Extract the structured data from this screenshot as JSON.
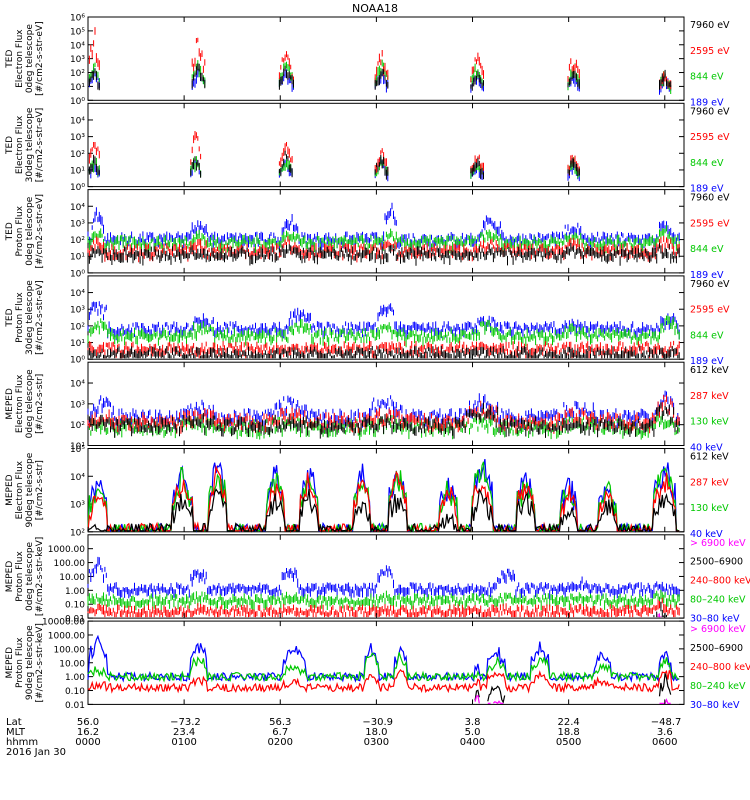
{
  "title": "NOAA18",
  "footer": {
    "row_labels": [
      "Lat",
      "MLT",
      "hhmm",
      "2016 Jan 30"
    ],
    "lat": [
      "56.0",
      "−73.2",
      "56.3",
      "−30.9",
      "3.8",
      "22.4",
      "−48.7"
    ],
    "mlt": [
      "16.2",
      "23.4",
      "6.7",
      "18.0",
      "5.0",
      "18.8",
      "3.6"
    ],
    "hhmm": [
      "0000",
      "0100",
      "0200",
      "0300",
      "0400",
      "0500",
      "0600"
    ]
  },
  "chart_data": [
    {
      "type": "scatter",
      "panel": "ted-electron-0deg",
      "ylabel": [
        "TED",
        "Electron Flux",
        "0deg telescope",
        "[#/cm2-s-str-eV]"
      ],
      "ylog": true,
      "ylim_exp": [
        0,
        6
      ],
      "ytick_labels": [
        "10⁰",
        "10¹",
        "10²",
        "10³",
        "10⁴",
        "10⁵",
        "10⁶"
      ],
      "channels": [
        {
          "label": "7960 eV",
          "color": "#000000"
        },
        {
          "label": "2595 eV",
          "color": "#ff0000"
        },
        {
          "label": "844 eV",
          "color": "#00c800"
        },
        {
          "label": "189 eV",
          "color": "#0000ff"
        }
      ],
      "bursts": [
        {
          "t": 0.065,
          "w": 0.05,
          "peak": [
            2.5,
            5.5,
            3.0,
            2.6
          ]
        },
        {
          "t": 1.15,
          "w": 0.06,
          "peak": [
            2.8,
            5.0,
            3.0,
            2.5
          ]
        },
        {
          "t": 2.06,
          "w": 0.07,
          "peak": [
            2.7,
            3.8,
            3.2,
            2.3
          ]
        },
        {
          "t": 3.05,
          "w": 0.06,
          "peak": [
            2.6,
            3.8,
            3.2,
            2.4
          ]
        },
        {
          "t": 4.05,
          "w": 0.06,
          "peak": [
            2.4,
            3.6,
            3.0,
            2.2
          ]
        },
        {
          "t": 5.05,
          "w": 0.06,
          "peak": [
            2.4,
            3.5,
            2.8,
            2.0
          ]
        },
        {
          "t": 6.0,
          "w": 0.06,
          "peak": [
            2.2,
            2.5,
            2.2,
            2.0
          ]
        }
      ]
    },
    {
      "type": "scatter",
      "panel": "ted-electron-30deg",
      "ylabel": [
        "TED",
        "Electron Flux",
        "30deg telescope",
        "[#/cm2-s-str-eV]"
      ],
      "ylog": true,
      "ylim_exp": [
        0,
        5
      ],
      "ytick_labels": [
        "10⁰",
        "10¹",
        "10²",
        "10³",
        "10⁴"
      ],
      "channels": [
        {
          "label": "7960 eV",
          "color": "#000000"
        },
        {
          "label": "2595 eV",
          "color": "#ff0000"
        },
        {
          "label": "844 eV",
          "color": "#00c800"
        },
        {
          "label": "189 eV",
          "color": "#0000ff"
        }
      ],
      "bursts": [
        {
          "t": 0.065,
          "w": 0.05,
          "peak": [
            2.0,
            3.7,
            2.0,
            1.8
          ]
        },
        {
          "t": 1.12,
          "w": 0.05,
          "peak": [
            2.0,
            3.5,
            2.0,
            1.8
          ]
        },
        {
          "t": 2.06,
          "w": 0.06,
          "peak": [
            2.2,
            3.0,
            2.0,
            1.8
          ]
        },
        {
          "t": 3.05,
          "w": 0.06,
          "peak": [
            2.0,
            2.6,
            2.0,
            1.8
          ]
        },
        {
          "t": 4.05,
          "w": 0.06,
          "peak": [
            1.8,
            2.3,
            1.8,
            1.6
          ]
        },
        {
          "t": 5.05,
          "w": 0.06,
          "peak": [
            1.8,
            2.2,
            1.8,
            1.6
          ]
        }
      ]
    },
    {
      "type": "scatter",
      "panel": "ted-proton-0deg",
      "ylabel": [
        "TED",
        "Proton Flux",
        "0deg telescope",
        "[#/cm2-s-str-eV]"
      ],
      "ylog": true,
      "ylim_exp": [
        0,
        5
      ],
      "ytick_labels": [
        "10⁰",
        "10¹",
        "10²",
        "10³",
        "10⁴"
      ],
      "channels": [
        {
          "label": "7960 eV",
          "color": "#000000"
        },
        {
          "label": "2595 eV",
          "color": "#ff0000"
        },
        {
          "label": "844 eV",
          "color": "#00c800"
        },
        {
          "label": "189 eV",
          "color": "#0000ff"
        }
      ],
      "baseline": [
        1.3,
        1.5,
        2.0,
        2.2
      ],
      "bursts": [
        {
          "t": 0.1,
          "w": 0.06,
          "peak": [
            1.5,
            2.0,
            2.5,
            4.0
          ]
        },
        {
          "t": 1.15,
          "w": 0.08,
          "peak": [
            1.5,
            1.9,
            2.4,
            3.2
          ]
        },
        {
          "t": 2.1,
          "w": 0.08,
          "peak": [
            1.5,
            2.0,
            2.5,
            3.3
          ]
        },
        {
          "t": 3.15,
          "w": 0.06,
          "peak": [
            1.5,
            2.0,
            2.5,
            4.1
          ]
        },
        {
          "t": 4.2,
          "w": 0.1,
          "peak": [
            1.5,
            1.9,
            2.5,
            3.4
          ]
        },
        {
          "t": 5.05,
          "w": 0.08,
          "peak": [
            1.6,
            1.9,
            2.5,
            3.0
          ]
        },
        {
          "t": 6.0,
          "w": 0.06,
          "peak": [
            1.6,
            2.2,
            2.8,
            3.3
          ]
        }
      ]
    },
    {
      "type": "scatter",
      "panel": "ted-proton-30deg",
      "ylabel": [
        "TED",
        "Proton Flux",
        "30deg telescope",
        "[#/cm2-s-str-eV]"
      ],
      "ylog": true,
      "ylim_exp": [
        0,
        5
      ],
      "ytick_labels": [
        "10⁰",
        "10¹",
        "10²",
        "10³",
        "10⁴"
      ],
      "channels": [
        {
          "label": "7960 eV",
          "color": "#000000"
        },
        {
          "label": "2595 eV",
          "color": "#ff0000"
        },
        {
          "label": "844 eV",
          "color": "#00c800"
        },
        {
          "label": "189 eV",
          "color": "#0000ff"
        }
      ],
      "baseline": [
        0.5,
        0.8,
        1.6,
        2.0
      ],
      "bursts": [
        {
          "t": 0.1,
          "w": 0.08,
          "peak": [
            0.5,
            0.8,
            2.3,
            3.8
          ]
        },
        {
          "t": 1.2,
          "w": 0.1,
          "peak": [
            0.5,
            0.8,
            2.2,
            2.6
          ]
        },
        {
          "t": 2.2,
          "w": 0.1,
          "peak": [
            0.5,
            0.8,
            2.3,
            3.1
          ]
        },
        {
          "t": 3.1,
          "w": 0.08,
          "peak": [
            0.5,
            0.8,
            2.3,
            3.6
          ]
        },
        {
          "t": 4.15,
          "w": 0.1,
          "peak": [
            0.5,
            0.8,
            2.2,
            2.5
          ]
        },
        {
          "t": 5.05,
          "w": 0.1,
          "peak": [
            0.5,
            0.8,
            2.0,
            2.2
          ]
        },
        {
          "t": 6.05,
          "w": 0.08,
          "peak": [
            0.5,
            0.8,
            2.5,
            2.7
          ]
        }
      ]
    },
    {
      "type": "scatter",
      "panel": "meped-electron-0deg",
      "ylabel": [
        "MEPED",
        "Electron Flux",
        "0deg telescope",
        "[#/cm2-s-str]"
      ],
      "ylog": true,
      "ylim_exp": [
        1,
        5
      ],
      "ytick_labels": [
        "10¹",
        "10²",
        "10³",
        "10⁴"
      ],
      "channels": [
        {
          "label": "612 keV",
          "color": "#000000"
        },
        {
          "label": "287 keV",
          "color": "#ff0000"
        },
        {
          "label": "130 keV",
          "color": "#00c800"
        },
        {
          "label": "40 keV",
          "color": "#0000ff"
        }
      ],
      "baseline": [
        2.1,
        2.3,
        2.0,
        2.5
      ],
      "bursts": [
        {
          "t": 0.15,
          "w": 0.1,
          "peak": [
            2.3,
            2.6,
            2.2,
            3.2
          ]
        },
        {
          "t": 1.15,
          "w": 0.15,
          "peak": [
            2.3,
            2.6,
            2.2,
            3.0
          ]
        },
        {
          "t": 2.1,
          "w": 0.15,
          "peak": [
            2.3,
            2.6,
            2.2,
            3.2
          ]
        },
        {
          "t": 3.1,
          "w": 0.15,
          "peak": [
            2.3,
            2.6,
            2.2,
            3.3
          ]
        },
        {
          "t": 4.1,
          "w": 0.15,
          "peak": [
            2.9,
            3.0,
            2.2,
            3.3
          ]
        },
        {
          "t": 5.1,
          "w": 0.15,
          "peak": [
            2.3,
            2.6,
            2.2,
            3.0
          ]
        },
        {
          "t": 6.0,
          "w": 0.08,
          "peak": [
            3.0,
            3.3,
            2.4,
            3.6
          ]
        }
      ]
    },
    {
      "type": "line",
      "panel": "meped-electron-90deg",
      "ylabel": [
        "MEPED",
        "Electron Flux",
        "90deg telescope",
        "[#/cm2-s-str]"
      ],
      "ylog": true,
      "ylim_exp": [
        2,
        5
      ],
      "ytick_labels": [
        "10²",
        "10³",
        "10⁴",
        "10⁵"
      ],
      "channels": [
        {
          "label": "612 keV",
          "color": "#000000"
        },
        {
          "label": "287 keV",
          "color": "#ff0000"
        },
        {
          "label": "130 keV",
          "color": "#00c800"
        },
        {
          "label": "40 keV",
          "color": "#0000ff"
        }
      ],
      "baseline": [
        2.0,
        2.0,
        2.0,
        2.0
      ],
      "bursts": [
        {
          "t": 0.1,
          "w": 0.08,
          "peak": [
            2.0,
            3.5,
            3.8,
            4.0
          ]
        },
        {
          "t": 0.98,
          "w": 0.09,
          "peak": [
            3.2,
            4.0,
            4.2,
            4.3
          ]
        },
        {
          "t": 1.35,
          "w": 0.08,
          "peak": [
            3.8,
            4.3,
            4.5,
            4.7
          ]
        },
        {
          "t": 1.95,
          "w": 0.08,
          "peak": [
            3.2,
            3.9,
            4.1,
            4.3
          ]
        },
        {
          "t": 2.3,
          "w": 0.08,
          "peak": [
            3.4,
            3.9,
            4.1,
            4.4
          ]
        },
        {
          "t": 2.85,
          "w": 0.08,
          "peak": [
            3.0,
            4.0,
            4.2,
            4.3
          ]
        },
        {
          "t": 3.22,
          "w": 0.08,
          "peak": [
            3.3,
            4.1,
            4.3,
            4.5
          ]
        },
        {
          "t": 3.75,
          "w": 0.08,
          "peak": [
            2.5,
            3.5,
            3.7,
            3.9
          ]
        },
        {
          "t": 4.1,
          "w": 0.1,
          "peak": [
            3.3,
            4.0,
            4.5,
            4.7
          ]
        },
        {
          "t": 4.55,
          "w": 0.08,
          "peak": [
            3.3,
            3.8,
            4.0,
            4.2
          ]
        },
        {
          "t": 5.0,
          "w": 0.08,
          "peak": [
            2.8,
            3.5,
            3.7,
            3.9
          ]
        },
        {
          "t": 5.4,
          "w": 0.08,
          "peak": [
            3.0,
            3.6,
            3.8,
            4.0
          ]
        },
        {
          "t": 6.0,
          "w": 0.1,
          "peak": [
            3.3,
            4.0,
            4.4,
            4.6
          ]
        }
      ]
    },
    {
      "type": "scatter",
      "panel": "meped-proton-0deg",
      "ylabel": [
        "MEPED",
        "Proton Flux",
        "0deg telescope",
        "[#/cm2-s-str-keV]"
      ],
      "ylog": true,
      "ylim_exp": [
        -2,
        4
      ],
      "ytick_labels": [
        "0.01",
        "0.10",
        "1.00",
        "10.00",
        "100.00",
        "1000.00"
      ],
      "channels": [
        {
          "label": "> 6900 keV",
          "color": "#ff00ff"
        },
        {
          "label": "2500–6900",
          "color": "#000000"
        },
        {
          "label": "240–800 keV",
          "color": "#ff0000"
        },
        {
          "label": "80–240 keV",
          "color": "#00c800"
        },
        {
          "label": "30–80 keV",
          "color": "#0000ff"
        }
      ],
      "baseline": [
        -3.0,
        -3.0,
        -1.3,
        -0.5,
        0.3
      ],
      "bursts": [
        {
          "t": 0.1,
          "w": 0.08,
          "peak": [
            -3.0,
            -3.0,
            -1.2,
            -0.3,
            2.3
          ]
        },
        {
          "t": 1.15,
          "w": 0.08,
          "peak": [
            -3.0,
            -3.0,
            -1.2,
            -0.3,
            1.8
          ]
        },
        {
          "t": 2.1,
          "w": 0.08,
          "peak": [
            -3.0,
            -3.0,
            -1.2,
            -0.3,
            1.7
          ]
        },
        {
          "t": 3.1,
          "w": 0.08,
          "peak": [
            -3.0,
            -3.0,
            -1.2,
            -0.3,
            1.9
          ]
        },
        {
          "t": 4.05,
          "w": 0.03,
          "peak": [
            -1.8,
            -1.4,
            -1.1,
            -0.5,
            0.3
          ]
        },
        {
          "t": 4.35,
          "w": 0.08,
          "peak": [
            -3.0,
            -3.0,
            -1.2,
            -0.3,
            1.7
          ]
        },
        {
          "t": 5.1,
          "w": 0.08,
          "peak": [
            -3.0,
            -3.0,
            -1.2,
            -0.3,
            0.8
          ]
        },
        {
          "t": 5.95,
          "w": 0.06,
          "peak": [
            -1.5,
            -1.0,
            -0.6,
            -0.2,
            0.5
          ]
        }
      ]
    },
    {
      "type": "line",
      "panel": "meped-proton-90deg",
      "ylabel": [
        "MEPED",
        "Proton Flux",
        "90deg telescope",
        "[#/cm2-s-str-keV]"
      ],
      "ylog": true,
      "ylim_exp": [
        -2,
        4
      ],
      "ytick_labels": [
        "0.01",
        "0.10",
        "1.00",
        "10.00",
        "100.00",
        "1000.00",
        "10000.00"
      ],
      "channels": [
        {
          "label": "> 6900 keV",
          "color": "#ff00ff"
        },
        {
          "label": "2500–6900",
          "color": "#000000"
        },
        {
          "label": "240–800 keV",
          "color": "#ff0000"
        },
        {
          "label": "80–240 keV",
          "color": "#00c800"
        },
        {
          "label": "30–80 keV",
          "color": "#0000ff"
        }
      ],
      "baseline": [
        -3.0,
        -3.0,
        -0.8,
        0.0,
        0.0
      ],
      "bursts": [
        {
          "t": 0.1,
          "w": 0.08,
          "peak": [
            -3.0,
            -3.0,
            -0.6,
            0.5,
            3.0
          ]
        },
        {
          "t": 1.15,
          "w": 0.08,
          "peak": [
            -3.0,
            -3.0,
            -0.2,
            1.5,
            2.5
          ]
        },
        {
          "t": 2.15,
          "w": 0.1,
          "peak": [
            -3.0,
            -3.0,
            -0.4,
            0.8,
            2.2
          ]
        },
        {
          "t": 2.95,
          "w": 0.06,
          "peak": [
            -3.0,
            -3.0,
            0.3,
            1.8,
            2.4
          ]
        },
        {
          "t": 3.25,
          "w": 0.06,
          "peak": [
            -3.0,
            -3.0,
            0.4,
            1.6,
            2.2
          ]
        },
        {
          "t": 4.05,
          "w": 0.03,
          "peak": [
            -1.3,
            -0.7,
            -0.3,
            0.3,
            0.8
          ]
        },
        {
          "t": 4.25,
          "w": 0.08,
          "peak": [
            -1.8,
            -0.4,
            0.4,
            1.2,
            2.0
          ]
        },
        {
          "t": 4.7,
          "w": 0.08,
          "peak": [
            -3.0,
            -3.0,
            0.2,
            1.5,
            2.4
          ]
        },
        {
          "t": 5.35,
          "w": 0.08,
          "peak": [
            -3.0,
            -3.0,
            -0.2,
            0.8,
            1.7
          ]
        },
        {
          "t": 6.0,
          "w": 0.06,
          "peak": [
            -1.6,
            0.3,
            0.6,
            1.2,
            1.9
          ]
        }
      ]
    }
  ]
}
